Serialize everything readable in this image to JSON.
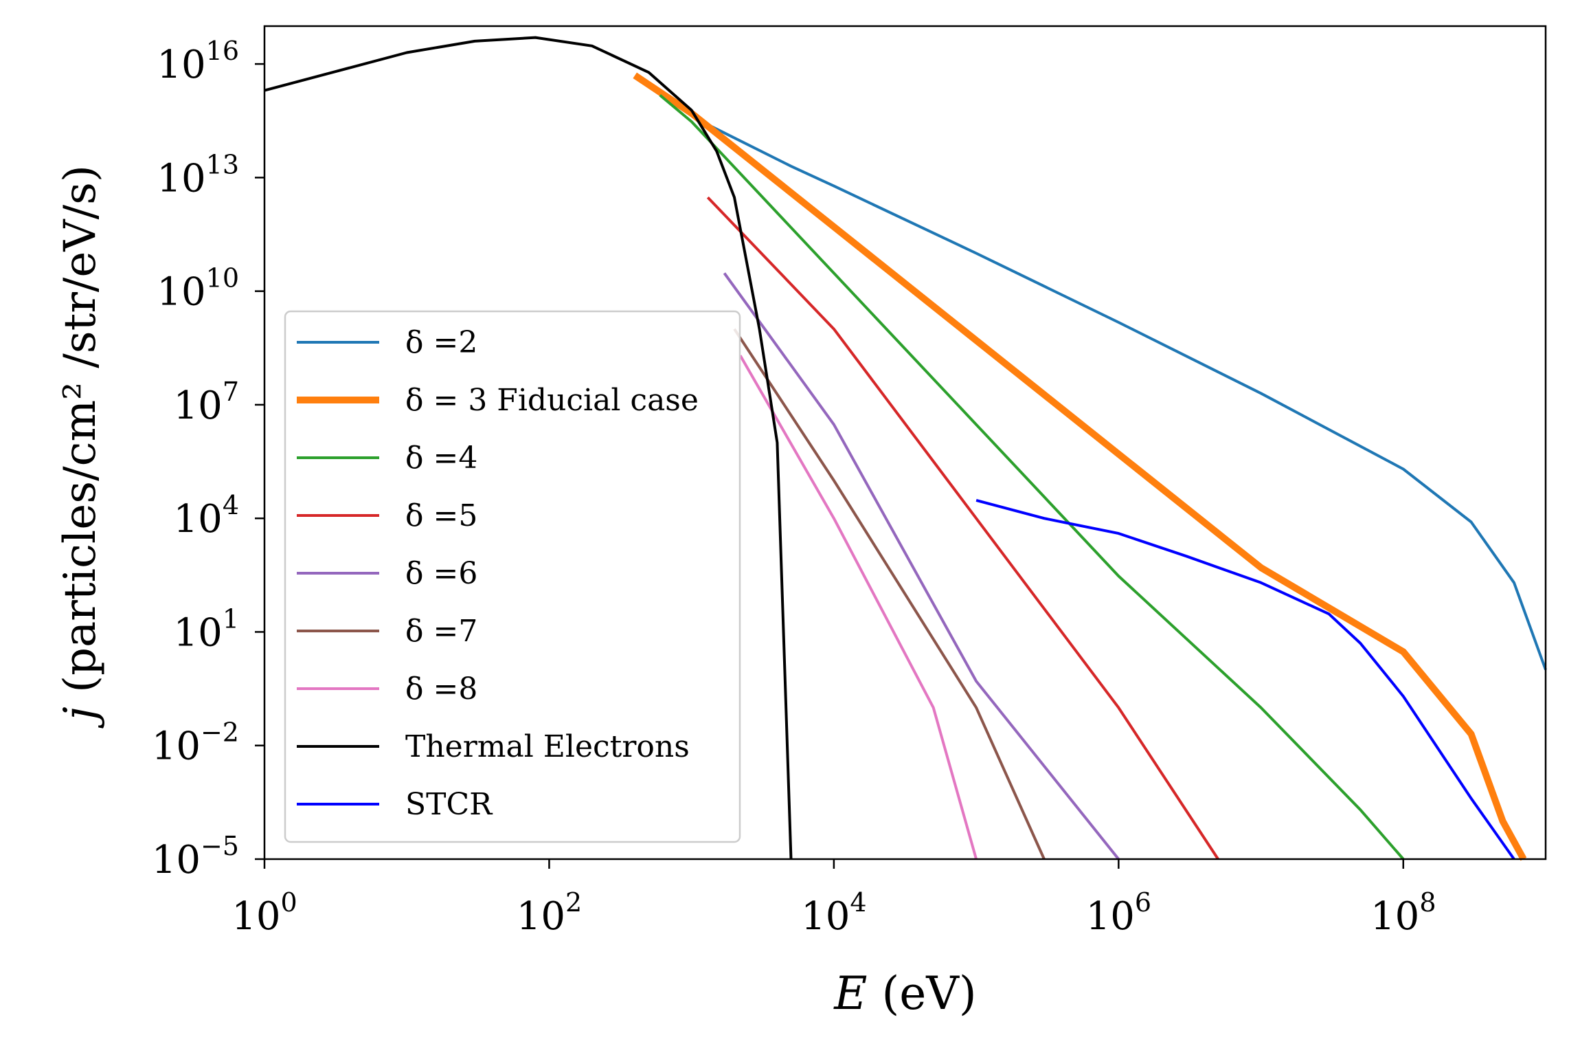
{
  "chart_data": {
    "type": "line",
    "title": "",
    "xlabel": {
      "var": "E",
      "unit": " (eV)"
    },
    "ylabel": {
      "var": "j",
      "unit": " (particles/cm² /str/eV/s)"
    },
    "xscale": "log",
    "yscale": "log",
    "xlim": [
      1,
      1000000000.0
    ],
    "ylim": [
      1e-05,
      1e+17
    ],
    "x_ticks": [
      {
        "base": "10",
        "exp": "0",
        "value": 1
      },
      {
        "base": "10",
        "exp": "2",
        "value": 100
      },
      {
        "base": "10",
        "exp": "4",
        "value": 10000
      },
      {
        "base": "10",
        "exp": "6",
        "value": 1000000
      },
      {
        "base": "10",
        "exp": "8",
        "value": 100000000
      }
    ],
    "y_ticks": [
      {
        "base": "10",
        "exp": "16",
        "value": 1e+16
      },
      {
        "base": "10",
        "exp": "13",
        "value": 10000000000000.0
      },
      {
        "base": "10",
        "exp": "10",
        "value": 10000000000.0
      },
      {
        "base": "10",
        "exp": "7",
        "value": 10000000.0
      },
      {
        "base": "10",
        "exp": "4",
        "value": 10000.0
      },
      {
        "base": "10",
        "exp": "1",
        "value": 10
      },
      {
        "base": "10",
        "exp": "−2",
        "value": 0.01
      },
      {
        "base": "10",
        "exp": "−5",
        "value": 1e-05
      }
    ],
    "legend_position": "lower-left",
    "series": [
      {
        "name": "δ =2",
        "color": "#1f77b4",
        "width": 4,
        "points": [
          [
            1300,
            250000000000000.0
          ],
          [
            5000,
            20000000000000.0
          ],
          [
            10000,
            6000000000000.0
          ],
          [
            100000,
            100000000000.0
          ],
          [
            1000000,
            1500000000.0
          ],
          [
            10000000,
            20000000.0
          ],
          [
            100000000,
            200000.0
          ],
          [
            300000000,
            8000.0
          ],
          [
            600000000,
            200
          ],
          [
            1000000000,
            1
          ]
        ]
      },
      {
        "name": "δ = 3 Fiducial case",
        "color": "#ff7f0e",
        "width": 10,
        "points": [
          [
            400,
            5000000000000000.0
          ],
          [
            1000,
            500000000000000.0
          ],
          [
            10000,
            500000000000.0
          ],
          [
            100000,
            500000000.0
          ],
          [
            1000000,
            500000.0
          ],
          [
            10000000,
            500.0
          ],
          [
            100000000,
            3
          ],
          [
            300000000,
            0.02
          ],
          [
            500000000,
            0.0001
          ],
          [
            700000000,
            1e-05
          ]
        ]
      },
      {
        "name": "δ =4",
        "color": "#2ca02c",
        "width": 4,
        "points": [
          [
            600,
            1500000000000000.0
          ],
          [
            1000,
            300000000000000.0
          ],
          [
            10000,
            30000000000.0
          ],
          [
            100000,
            3000000.0
          ],
          [
            1000000,
            300.0
          ],
          [
            10000000,
            0.1
          ],
          [
            50000000,
            0.0002
          ],
          [
            100000000,
            1e-05
          ]
        ]
      },
      {
        "name": "δ =5",
        "color": "#d62728",
        "width": 4,
        "points": [
          [
            1300,
            3000000000000.0
          ],
          [
            10000,
            1000000000.0
          ],
          [
            100000,
            10000.0
          ],
          [
            1000000,
            0.1
          ],
          [
            5000000,
            1e-05
          ]
        ]
      },
      {
        "name": "δ =6",
        "color": "#9467bd",
        "width": 4,
        "points": [
          [
            1700,
            30000000000.0
          ],
          [
            10000,
            3000000.0
          ],
          [
            100000,
            0.5
          ],
          [
            1000000,
            1e-05
          ]
        ]
      },
      {
        "name": "δ =7",
        "color": "#8c564b",
        "width": 4,
        "points": [
          [
            2000,
            1000000000.0
          ],
          [
            10000,
            100000.0
          ],
          [
            100000,
            0.1
          ],
          [
            300000,
            1e-05
          ]
        ]
      },
      {
        "name": "δ =8",
        "color": "#e377c2",
        "width": 4,
        "points": [
          [
            2200,
            200000000.0
          ],
          [
            10000,
            10000.0
          ],
          [
            50000,
            0.1
          ],
          [
            100000,
            1e-05
          ]
        ]
      },
      {
        "name": "Thermal Electrons",
        "color": "#000000",
        "width": 4,
        "points": [
          [
            1,
            2000000000000000.0
          ],
          [
            3,
            6000000000000000.0
          ],
          [
            10,
            2e+16
          ],
          [
            30,
            4e+16
          ],
          [
            80,
            5e+16
          ],
          [
            200,
            3e+16
          ],
          [
            500,
            6000000000000000.0
          ],
          [
            1000,
            600000000000000.0
          ],
          [
            1500,
            50000000000000.0
          ],
          [
            2000,
            3000000000000.0
          ],
          [
            3000,
            1000000000.0
          ],
          [
            4000,
            1000000.0
          ],
          [
            5000,
            1e-05
          ]
        ]
      },
      {
        "name": "STCR",
        "color": "#0000ff",
        "width": 4,
        "points": [
          [
            100000,
            30000.0
          ],
          [
            300000,
            10000.0
          ],
          [
            1000000,
            4000.0
          ],
          [
            3000000,
            1000.0
          ],
          [
            10000000,
            200.0
          ],
          [
            30000000,
            30
          ],
          [
            50000000,
            5
          ],
          [
            100000000,
            0.2
          ],
          [
            300000000,
            0.0004
          ],
          [
            600000000,
            1e-05
          ]
        ]
      }
    ]
  }
}
